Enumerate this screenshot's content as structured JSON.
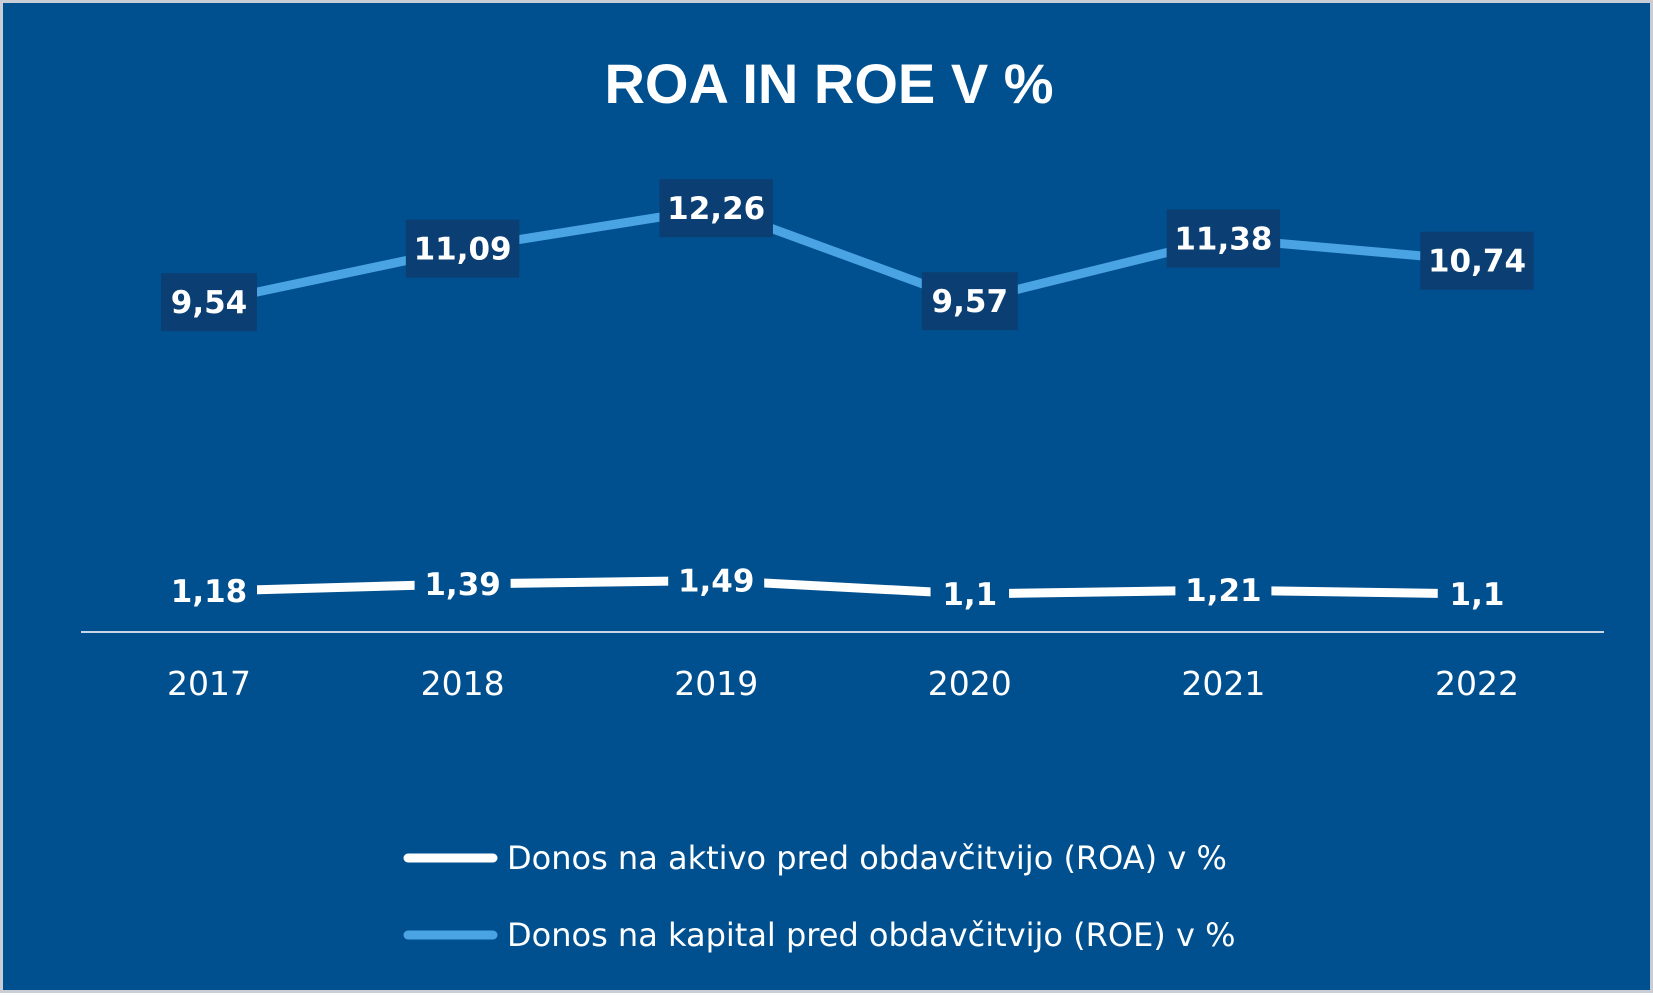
{
  "chart_data": {
    "type": "line",
    "title": "ROA IN ROE V %",
    "categories": [
      "2017",
      "2018",
      "2019",
      "2020",
      "2021",
      "2022"
    ],
    "series": [
      {
        "name": "Donos na aktivo pred obdavčitvijo (ROA) v %",
        "values": [
          1.18,
          1.39,
          1.49,
          1.1,
          1.21,
          1.1
        ],
        "labels": [
          "1,18",
          "1,39",
          "1,49",
          "1,1",
          "1,21",
          "1,1"
        ],
        "color": "#ffffff"
      },
      {
        "name": "Donos na kapital pred obdavčitvijo (ROE) v %",
        "values": [
          9.54,
          11.09,
          12.26,
          9.57,
          11.38,
          10.74
        ],
        "labels": [
          "9,54",
          "11,09",
          "12,26",
          "9,57",
          "11,38",
          "10,74"
        ],
        "color": "#4aa3e2"
      }
    ],
    "ylim": [
      0,
      14
    ],
    "grid": false,
    "legend_position": "bottom",
    "colors": {
      "background": "#00508f",
      "label_box": "#0b3f73",
      "axis": "#c9d6e8"
    }
  }
}
